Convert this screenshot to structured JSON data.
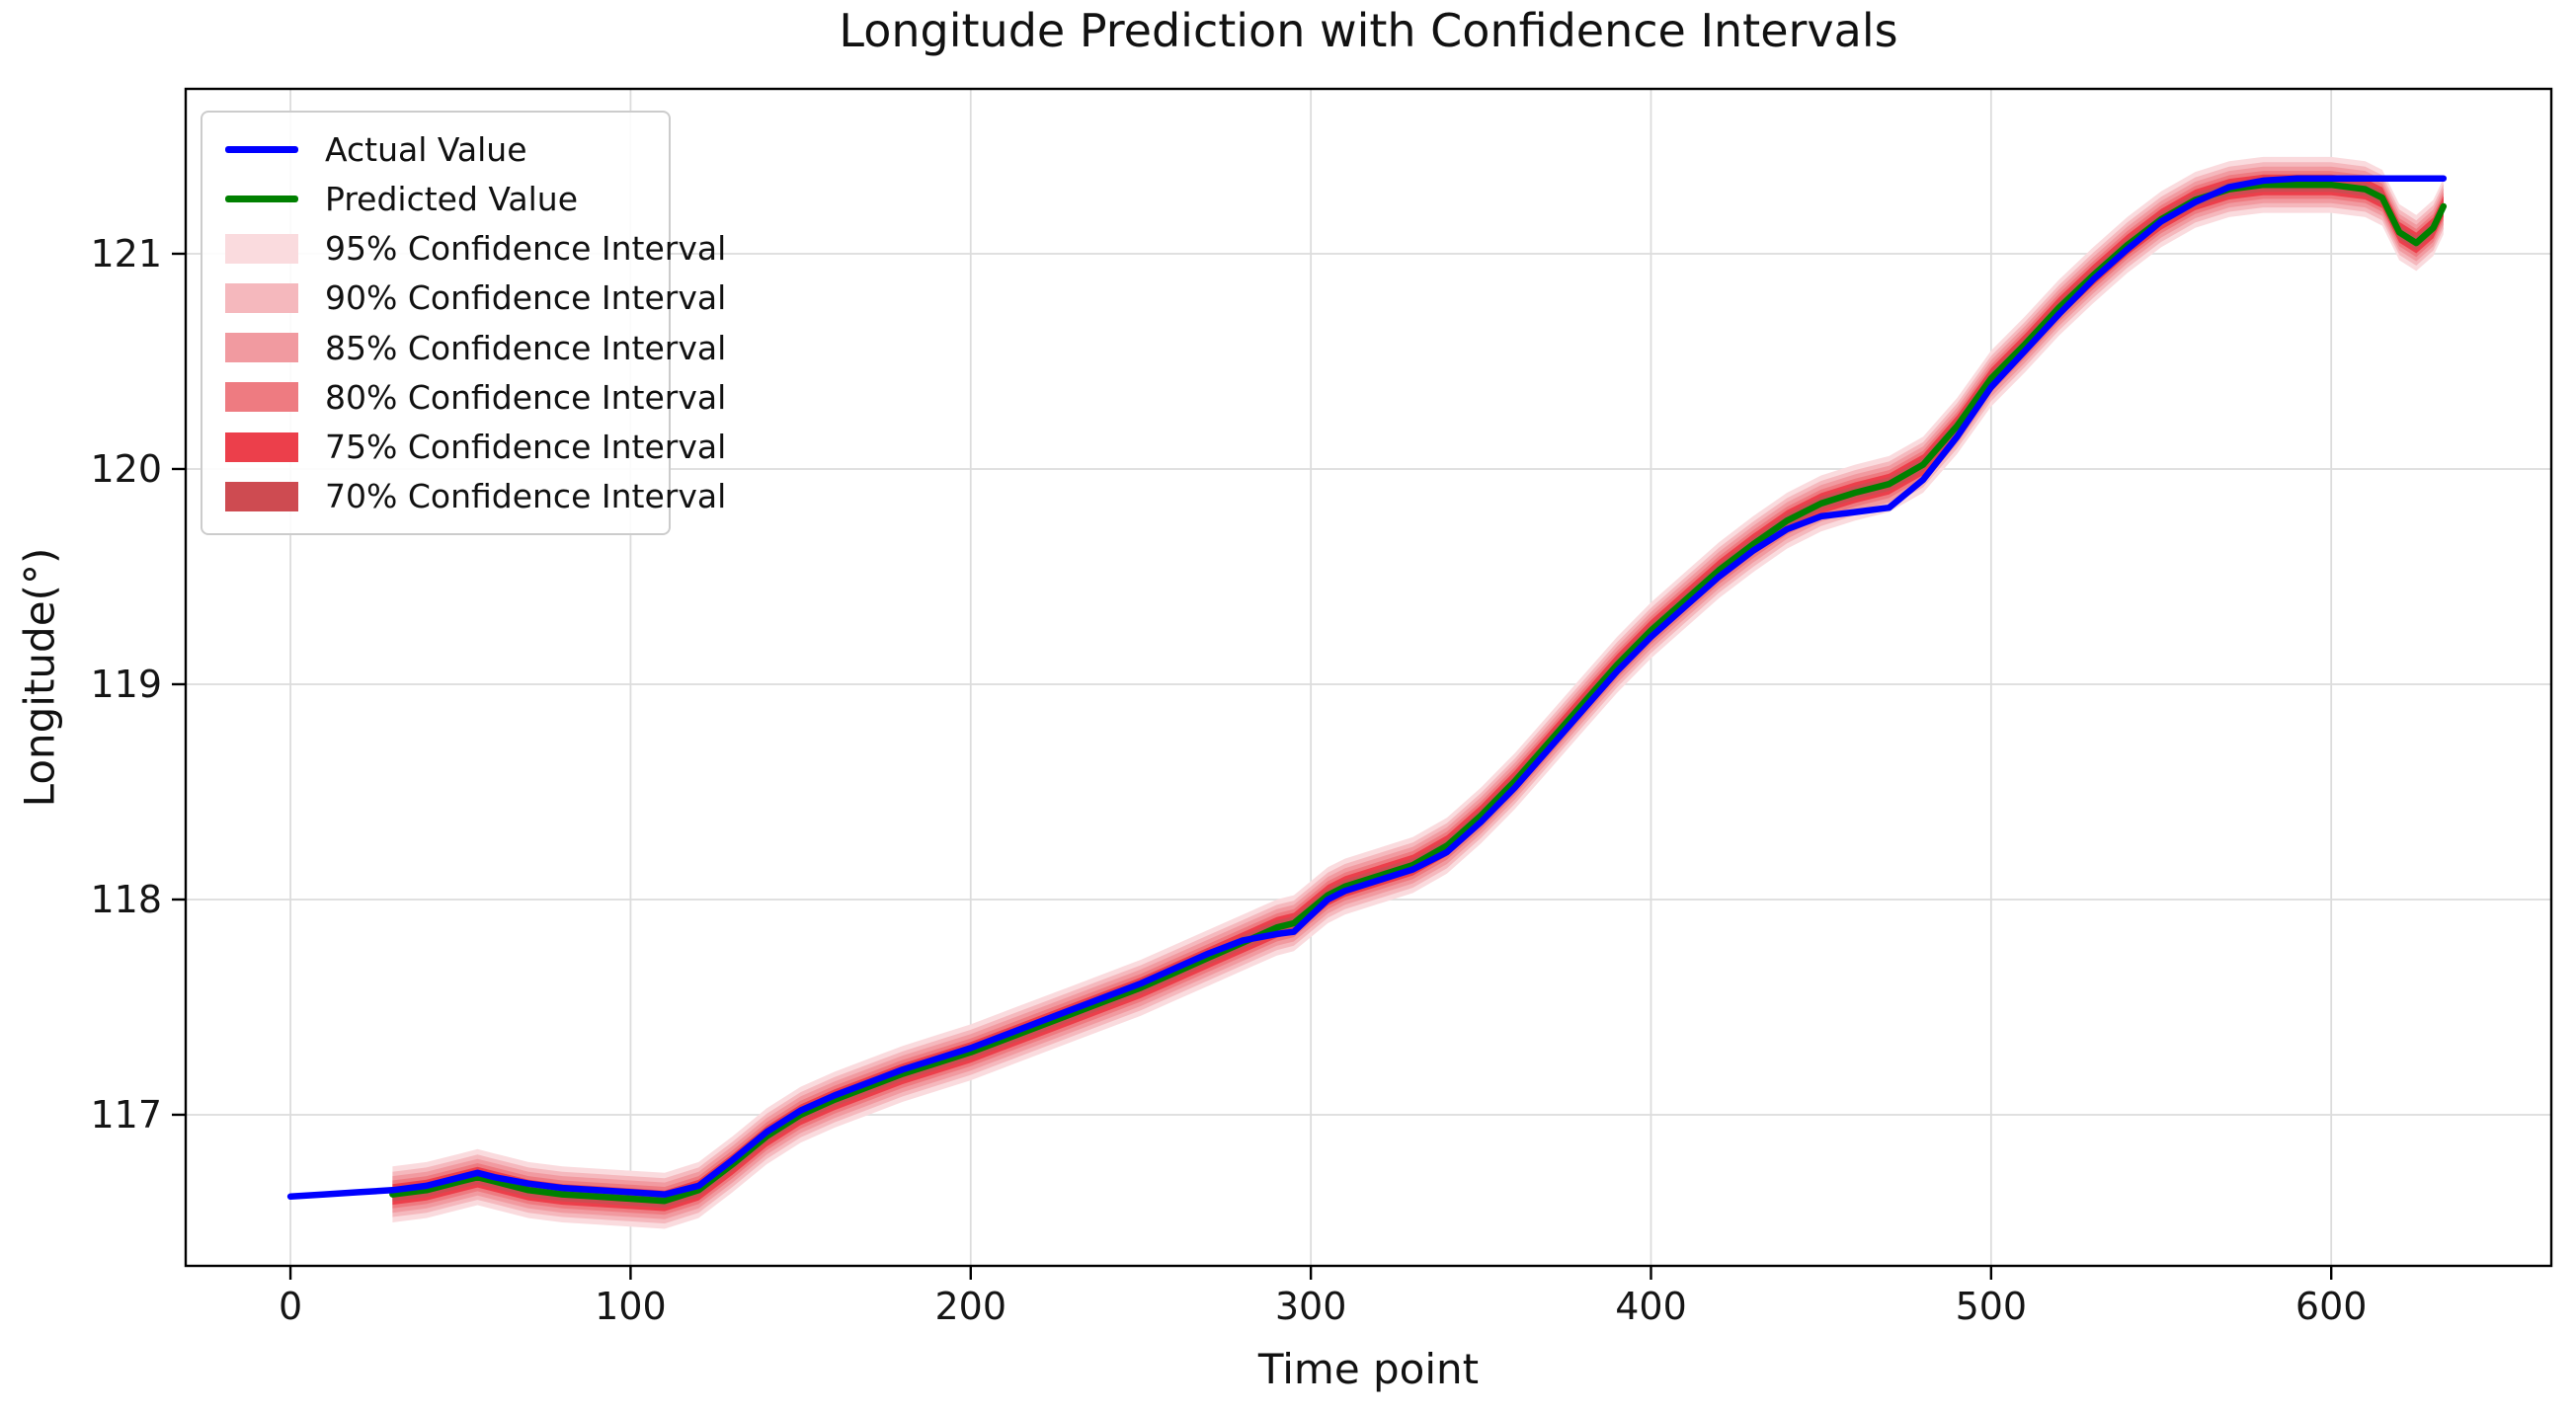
{
  "title": "Longitude Prediction with Confidence Intervals",
  "xlabel": "Time point",
  "ylabel": "Longitude(°)",
  "legend": {
    "position": "upper left",
    "entries": [
      {
        "label": "Actual Value",
        "type": "line",
        "color": "#0000ff"
      },
      {
        "label": "Predicted Value",
        "type": "line",
        "color": "#008000"
      },
      {
        "label": "95% Confidence Interval",
        "type": "patch",
        "color": "#fadbde"
      },
      {
        "label": "90% Confidence Interval",
        "type": "patch",
        "color": "#f5b8bd"
      },
      {
        "label": "85% Confidence Interval",
        "type": "patch",
        "color": "#f19aa0"
      },
      {
        "label": "80% Confidence Interval",
        "type": "patch",
        "color": "#ee7b81"
      },
      {
        "label": "75% Confidence Interval",
        "type": "patch",
        "color": "#ec3f4b"
      },
      {
        "label": "70% Confidence Interval",
        "type": "patch",
        "color": "#ce4b51"
      }
    ]
  },
  "chart_data": {
    "type": "line",
    "title": "Longitude Prediction with Confidence Intervals",
    "xlabel": "Time point",
    "ylabel": "Longitude(°)",
    "xlim": [
      -30.8,
      664.7
    ],
    "ylim": [
      116.298,
      121.766
    ],
    "xticks": [
      0,
      100,
      200,
      300,
      400,
      500,
      600
    ],
    "yticks": [
      117,
      118,
      119,
      120,
      121
    ],
    "grid": true,
    "grid_color": "#dcdcdc",
    "legend_position": "upper left",
    "series": [
      {
        "name": "Actual Value",
        "color": "#0000ff",
        "x": [
          0,
          10,
          20,
          30,
          40,
          50,
          55,
          60,
          70,
          80,
          90,
          100,
          110,
          120,
          130,
          140,
          150,
          160,
          170,
          180,
          190,
          200,
          210,
          220,
          230,
          240,
          250,
          260,
          270,
          280,
          290,
          295,
          305,
          310,
          320,
          330,
          340,
          350,
          360,
          370,
          380,
          390,
          400,
          410,
          420,
          430,
          440,
          450,
          460,
          470,
          480,
          490,
          500,
          510,
          520,
          530,
          540,
          550,
          560,
          570,
          580,
          590,
          600,
          610,
          620,
          630,
          633
        ],
        "y": [
          116.62,
          116.63,
          116.64,
          116.65,
          116.67,
          116.71,
          116.73,
          116.71,
          116.68,
          116.66,
          116.65,
          116.64,
          116.63,
          116.67,
          116.79,
          116.92,
          117.02,
          117.09,
          117.15,
          117.21,
          117.26,
          117.31,
          117.37,
          117.43,
          117.49,
          117.55,
          117.61,
          117.68,
          117.75,
          117.81,
          117.84,
          117.85,
          118.0,
          118.04,
          118.09,
          118.14,
          118.22,
          118.36,
          118.52,
          118.7,
          118.88,
          119.06,
          119.22,
          119.36,
          119.5,
          119.62,
          119.72,
          119.78,
          119.8,
          119.82,
          119.95,
          120.15,
          120.38,
          120.55,
          120.72,
          120.88,
          121.02,
          121.15,
          121.24,
          121.31,
          121.34,
          121.35,
          121.35,
          121.35,
          121.35,
          121.35,
          121.35
        ]
      },
      {
        "name": "Predicted Value",
        "color": "#008000",
        "x": [
          30,
          40,
          50,
          55,
          60,
          70,
          80,
          90,
          100,
          110,
          120,
          130,
          140,
          150,
          160,
          170,
          180,
          190,
          200,
          210,
          220,
          230,
          240,
          250,
          260,
          270,
          280,
          290,
          295,
          305,
          310,
          320,
          330,
          340,
          350,
          360,
          370,
          380,
          390,
          400,
          410,
          420,
          430,
          440,
          450,
          460,
          470,
          480,
          490,
          500,
          510,
          520,
          530,
          540,
          550,
          560,
          570,
          580,
          590,
          600,
          610,
          615,
          620,
          625,
          630,
          633
        ],
        "y": [
          116.63,
          116.65,
          116.69,
          116.71,
          116.69,
          116.65,
          116.63,
          116.62,
          116.61,
          116.6,
          116.65,
          116.77,
          116.9,
          117.0,
          117.07,
          117.13,
          117.19,
          117.24,
          117.29,
          117.35,
          117.41,
          117.47,
          117.53,
          117.59,
          117.66,
          117.73,
          117.8,
          117.87,
          117.89,
          118.02,
          118.06,
          118.11,
          118.16,
          118.25,
          118.39,
          118.55,
          118.73,
          118.91,
          119.09,
          119.25,
          119.39,
          119.53,
          119.65,
          119.76,
          119.84,
          119.89,
          119.93,
          120.02,
          120.2,
          120.42,
          120.58,
          120.75,
          120.9,
          121.04,
          121.16,
          121.25,
          121.3,
          121.32,
          121.32,
          121.32,
          121.3,
          121.26,
          121.1,
          121.05,
          121.12,
          121.22
        ]
      }
    ],
    "confidence_intervals": [
      {
        "level": "95%",
        "half_width": 0.13,
        "color": "#fadbde"
      },
      {
        "level": "90%",
        "half_width": 0.105,
        "color": "#f5b8bd"
      },
      {
        "level": "85%",
        "half_width": 0.085,
        "color": "#f19aa0"
      },
      {
        "level": "80%",
        "half_width": 0.065,
        "color": "#ee7b81"
      },
      {
        "level": "75%",
        "half_width": 0.048,
        "color": "#ec3f4b"
      },
      {
        "level": "70%",
        "half_width": 0.032,
        "color": "#ce4b51"
      }
    ]
  }
}
